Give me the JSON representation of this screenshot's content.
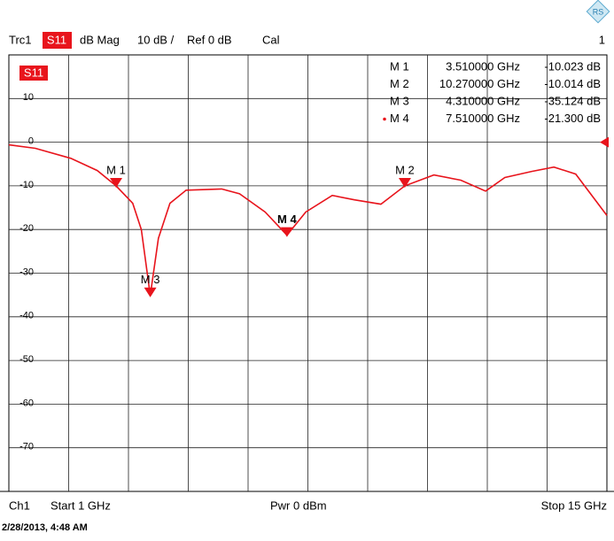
{
  "chart_data": {
    "type": "line",
    "header": {
      "trace": "Trc1",
      "parameter": "S11",
      "format": "dB Mag",
      "scale": "10 dB /",
      "reference": "Ref 0 dB",
      "cal": "Cal",
      "channel_number": "1"
    },
    "trace_tag": "S11",
    "x": [
      1,
      1.62,
      2.45,
      3.07,
      3.51,
      3.9,
      4.1,
      4.31,
      4.5,
      4.77,
      5.15,
      5.98,
      6.4,
      7.0,
      7.51,
      7.95,
      8.57,
      9.09,
      9.71,
      10.27,
      10.95,
      11.58,
      12.16,
      12.61,
      13.24,
      13.76,
      14.27,
      15
    ],
    "series": [
      {
        "name": "S11",
        "color": "#e8141c",
        "values": [
          -0.6,
          -1.4,
          -3.7,
          -6.5,
          -10.0,
          -14,
          -20,
          -35.1,
          -22,
          -14,
          -11,
          -10.7,
          -11.8,
          -16,
          -21.3,
          -16,
          -12.2,
          -13.2,
          -14.2,
          -10.0,
          -7.5,
          -8.7,
          -11.2,
          -8.1,
          -6.7,
          -5.7,
          -7.3,
          -16.8
        ]
      }
    ],
    "xlim": [
      1,
      15
    ],
    "ylim": [
      -80,
      20
    ],
    "yticks": [
      10,
      0,
      -10,
      -20,
      -30,
      -40,
      -50,
      -60,
      -70
    ],
    "ref_level": 0,
    "grid": true,
    "markers": [
      {
        "name": "M 1",
        "x": 3.51,
        "x_label": "3.510000 GHz",
        "value": -10.023,
        "value_label": "-10.023 dB",
        "active": false
      },
      {
        "name": "M 2",
        "x": 10.27,
        "x_label": "10.270000 GHz",
        "value": -10.014,
        "value_label": "-10.014 dB",
        "active": false
      },
      {
        "name": "M 3",
        "x": 4.31,
        "x_label": "4.310000 GHz",
        "value": -35.124,
        "value_label": "-35.124 dB",
        "active": false
      },
      {
        "name": "M 4",
        "x": 7.51,
        "x_label": "7.510000 GHz",
        "value": -21.3,
        "value_label": "-21.300 dB",
        "active": true
      }
    ],
    "footer": {
      "channel": "Ch1",
      "start": "Start  1 GHz",
      "power": "Pwr  0 dBm",
      "stop": "Stop  15 GHz"
    },
    "timestamp": "2/28/2013, 4:48 AM"
  }
}
